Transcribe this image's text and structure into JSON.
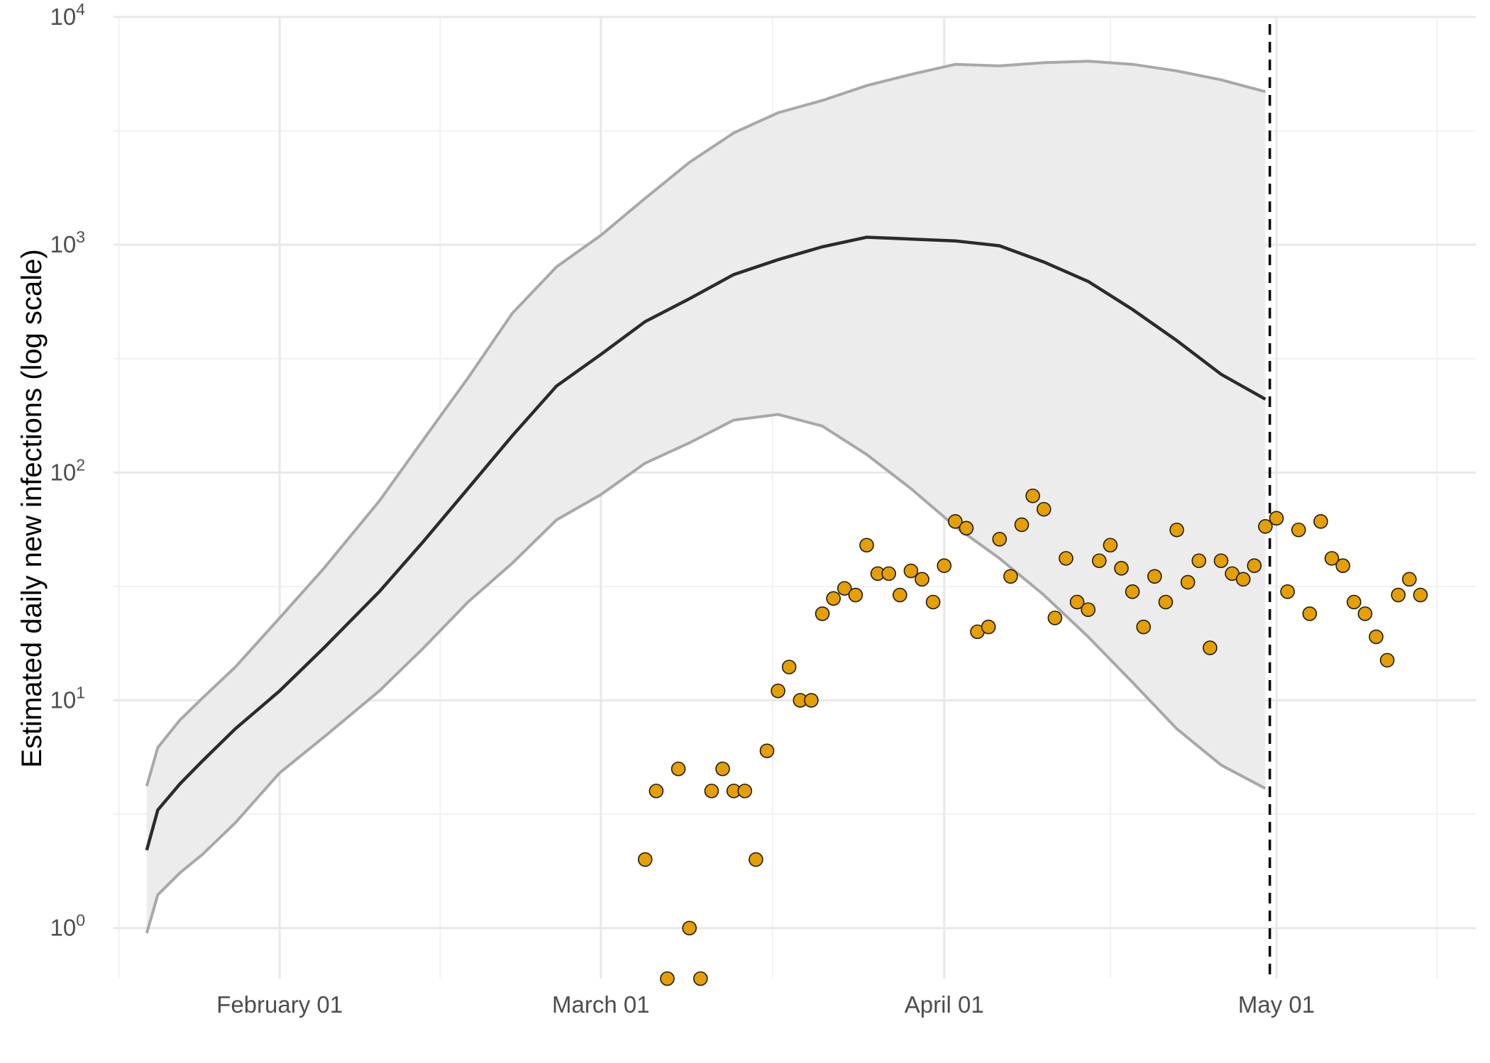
{
  "chart_data": {
    "type": "line",
    "ylabel": "Estimated daily new infections (log scale)",
    "y_scale": "log10",
    "y_ticks": [
      {
        "value": 1,
        "base": "10",
        "exp": "0"
      },
      {
        "value": 10,
        "base": "10",
        "exp": "1"
      },
      {
        "value": 100,
        "base": "10",
        "exp": "2"
      },
      {
        "value": 1000,
        "base": "10",
        "exp": "3"
      },
      {
        "value": 10000,
        "base": "10",
        "exp": "4"
      }
    ],
    "ylim": [
      0.6,
      10000
    ],
    "xlim": [
      "2020-01-17",
      "2020-05-19"
    ],
    "x_ticks": [
      {
        "date": "2020-02-01",
        "label": "February 01"
      },
      {
        "date": "2020-03-01",
        "label": "March 01"
      },
      {
        "date": "2020-04-01",
        "label": "April 01"
      },
      {
        "date": "2020-05-01",
        "label": "May 01"
      }
    ],
    "vline": {
      "date": "2020-04-30",
      "style": "dashed"
    },
    "colors": {
      "band": "#ececec",
      "band_edge": "#a8a8a8",
      "median": "#2b2b2b",
      "points": "#e69f00",
      "point_edge": "#1a1a1a"
    },
    "series": [
      {
        "role": "median",
        "points": [
          [
            "2020-01-20",
            2.2
          ],
          [
            "2020-01-21",
            3.3
          ],
          [
            "2020-01-23",
            4.3
          ],
          [
            "2020-01-25",
            5.4
          ],
          [
            "2020-01-28",
            7.5
          ],
          [
            "2020-02-01",
            11
          ],
          [
            "2020-02-05",
            17
          ],
          [
            "2020-02-10",
            30
          ],
          [
            "2020-02-14",
            50
          ],
          [
            "2020-02-18",
            85
          ],
          [
            "2020-02-22",
            145
          ],
          [
            "2020-02-26",
            240
          ],
          [
            "2020-03-01",
            330
          ],
          [
            "2020-03-05",
            460
          ],
          [
            "2020-03-09",
            580
          ],
          [
            "2020-03-13",
            740
          ],
          [
            "2020-03-17",
            860
          ],
          [
            "2020-03-21",
            980
          ],
          [
            "2020-03-25",
            1080
          ],
          [
            "2020-03-29",
            1060
          ],
          [
            "2020-04-02",
            1040
          ],
          [
            "2020-04-06",
            990
          ],
          [
            "2020-04-10",
            840
          ],
          [
            "2020-04-14",
            690
          ],
          [
            "2020-04-18",
            520
          ],
          [
            "2020-04-22",
            380
          ],
          [
            "2020-04-26",
            270
          ],
          [
            "2020-04-30",
            210
          ]
        ]
      },
      {
        "role": "upper",
        "points": [
          [
            "2020-01-20",
            4.2
          ],
          [
            "2020-01-21",
            6.2
          ],
          [
            "2020-01-23",
            8.2
          ],
          [
            "2020-01-25",
            10.2
          ],
          [
            "2020-01-28",
            14
          ],
          [
            "2020-02-01",
            23
          ],
          [
            "2020-02-05",
            38
          ],
          [
            "2020-02-10",
            75
          ],
          [
            "2020-02-14",
            140
          ],
          [
            "2020-02-18",
            260
          ],
          [
            "2020-02-22",
            500
          ],
          [
            "2020-02-26",
            800
          ],
          [
            "2020-03-01",
            1100
          ],
          [
            "2020-03-05",
            1600
          ],
          [
            "2020-03-09",
            2300
          ],
          [
            "2020-03-13",
            3100
          ],
          [
            "2020-03-17",
            3800
          ],
          [
            "2020-03-21",
            4300
          ],
          [
            "2020-03-25",
            5000
          ],
          [
            "2020-03-29",
            5600
          ],
          [
            "2020-04-02",
            6200
          ],
          [
            "2020-04-06",
            6100
          ],
          [
            "2020-04-10",
            6300
          ],
          [
            "2020-04-14",
            6400
          ],
          [
            "2020-04-18",
            6200
          ],
          [
            "2020-04-22",
            5800
          ],
          [
            "2020-04-26",
            5300
          ],
          [
            "2020-04-30",
            4700
          ]
        ]
      },
      {
        "role": "lower",
        "points": [
          [
            "2020-01-20",
            0.95
          ],
          [
            "2020-01-21",
            1.4
          ],
          [
            "2020-01-23",
            1.75
          ],
          [
            "2020-01-25",
            2.1
          ],
          [
            "2020-01-28",
            2.9
          ],
          [
            "2020-02-01",
            4.8
          ],
          [
            "2020-02-05",
            6.9
          ],
          [
            "2020-02-10",
            11
          ],
          [
            "2020-02-14",
            17
          ],
          [
            "2020-02-18",
            27
          ],
          [
            "2020-02-22",
            40
          ],
          [
            "2020-02-26",
            62
          ],
          [
            "2020-03-01",
            80
          ],
          [
            "2020-03-05",
            110
          ],
          [
            "2020-03-09",
            135
          ],
          [
            "2020-03-13",
            170
          ],
          [
            "2020-03-17",
            180
          ],
          [
            "2020-03-21",
            160
          ],
          [
            "2020-03-25",
            120
          ],
          [
            "2020-03-29",
            85
          ],
          [
            "2020-04-02",
            58
          ],
          [
            "2020-04-06",
            42
          ],
          [
            "2020-04-10",
            29
          ],
          [
            "2020-04-14",
            19
          ],
          [
            "2020-04-18",
            12
          ],
          [
            "2020-04-22",
            7.5
          ],
          [
            "2020-04-26",
            5.2
          ],
          [
            "2020-04-30",
            4.1
          ]
        ]
      },
      {
        "role": "observed",
        "points": [
          [
            "2020-03-05",
            2
          ],
          [
            "2020-03-06",
            4
          ],
          [
            "2020-03-07",
            0.6
          ],
          [
            "2020-03-08",
            5
          ],
          [
            "2020-03-09",
            1
          ],
          [
            "2020-03-10",
            0.6
          ],
          [
            "2020-03-11",
            4
          ],
          [
            "2020-03-12",
            5
          ],
          [
            "2020-03-13",
            4
          ],
          [
            "2020-03-14",
            4
          ],
          [
            "2020-03-15",
            2
          ],
          [
            "2020-03-16",
            6
          ],
          [
            "2020-03-17",
            11
          ],
          [
            "2020-03-18",
            14
          ],
          [
            "2020-03-19",
            10
          ],
          [
            "2020-03-20",
            10
          ],
          [
            "2020-03-21",
            24
          ],
          [
            "2020-03-22",
            28
          ],
          [
            "2020-03-23",
            31
          ],
          [
            "2020-03-24",
            29
          ],
          [
            "2020-03-25",
            48
          ],
          [
            "2020-03-26",
            36
          ],
          [
            "2020-03-27",
            36
          ],
          [
            "2020-03-28",
            29
          ],
          [
            "2020-03-29",
            37
          ],
          [
            "2020-03-30",
            34
          ],
          [
            "2020-03-31",
            27
          ],
          [
            "2020-04-01",
            39
          ],
          [
            "2020-04-02",
            61
          ],
          [
            "2020-04-03",
            57
          ],
          [
            "2020-04-04",
            20
          ],
          [
            "2020-04-05",
            21
          ],
          [
            "2020-04-06",
            51
          ],
          [
            "2020-04-07",
            35
          ],
          [
            "2020-04-08",
            59
          ],
          [
            "2020-04-09",
            79
          ],
          [
            "2020-04-10",
            69
          ],
          [
            "2020-04-11",
            23
          ],
          [
            "2020-04-12",
            42
          ],
          [
            "2020-04-13",
            27
          ],
          [
            "2020-04-14",
            25
          ],
          [
            "2020-04-15",
            41
          ],
          [
            "2020-04-16",
            48
          ],
          [
            "2020-04-17",
            38
          ],
          [
            "2020-04-18",
            30
          ],
          [
            "2020-04-19",
            21
          ],
          [
            "2020-04-20",
            35
          ],
          [
            "2020-04-21",
            27
          ],
          [
            "2020-04-22",
            56
          ],
          [
            "2020-04-23",
            33
          ],
          [
            "2020-04-24",
            41
          ],
          [
            "2020-04-25",
            17
          ],
          [
            "2020-04-26",
            41
          ],
          [
            "2020-04-27",
            36
          ],
          [
            "2020-04-28",
            34
          ],
          [
            "2020-04-29",
            39
          ],
          [
            "2020-04-30",
            58
          ],
          [
            "2020-05-01",
            63
          ],
          [
            "2020-05-02",
            30
          ],
          [
            "2020-05-03",
            56
          ],
          [
            "2020-05-04",
            24
          ],
          [
            "2020-05-05",
            61
          ],
          [
            "2020-05-06",
            42
          ],
          [
            "2020-05-07",
            39
          ],
          [
            "2020-05-08",
            27
          ],
          [
            "2020-05-09",
            24
          ],
          [
            "2020-05-10",
            19
          ],
          [
            "2020-05-11",
            15
          ],
          [
            "2020-05-12",
            29
          ],
          [
            "2020-05-13",
            34
          ],
          [
            "2020-05-14",
            29
          ]
        ]
      }
    ]
  }
}
